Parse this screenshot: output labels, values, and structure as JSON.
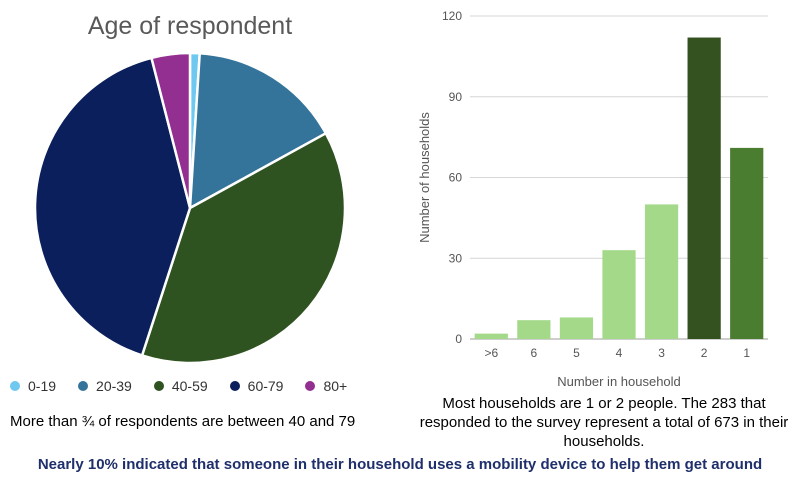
{
  "chart_data": [
    {
      "type": "pie",
      "title": "Age of respondent",
      "categories": [
        "0-19",
        "20-39",
        "40-59",
        "60-79",
        "80+"
      ],
      "values": [
        1,
        16,
        38,
        41,
        4
      ],
      "colors": [
        "#6fc8f0",
        "#34739a",
        "#2f5320",
        "#0b1f5c",
        "#932f91"
      ],
      "legend_position": "bottom",
      "caption": "More than ¾ of respondents are between 40 and 79"
    },
    {
      "type": "bar",
      "categories": [
        ">6",
        "6",
        "5",
        "4",
        "3",
        "2",
        "1"
      ],
      "values": [
        2,
        7,
        8,
        33,
        50,
        112,
        71
      ],
      "colors": [
        "#a3d989",
        "#a3d989",
        "#a3d989",
        "#a3d989",
        "#a3d989",
        "#33521f",
        "#4a7d2f"
      ],
      "xlabel": "Number in household",
      "ylabel": "Number of households",
      "ylim": [
        0,
        120
      ],
      "yticks": [
        "0",
        "30",
        "60",
        "90",
        "120"
      ],
      "grid": true,
      "caption": "Most households are 1 or 2 people. The 283 that responded to the survey represent a total of 673 in their households."
    }
  ],
  "footer": {
    "note": "Nearly 10% indicated that someone in their household uses a mobility device to help them get around"
  }
}
